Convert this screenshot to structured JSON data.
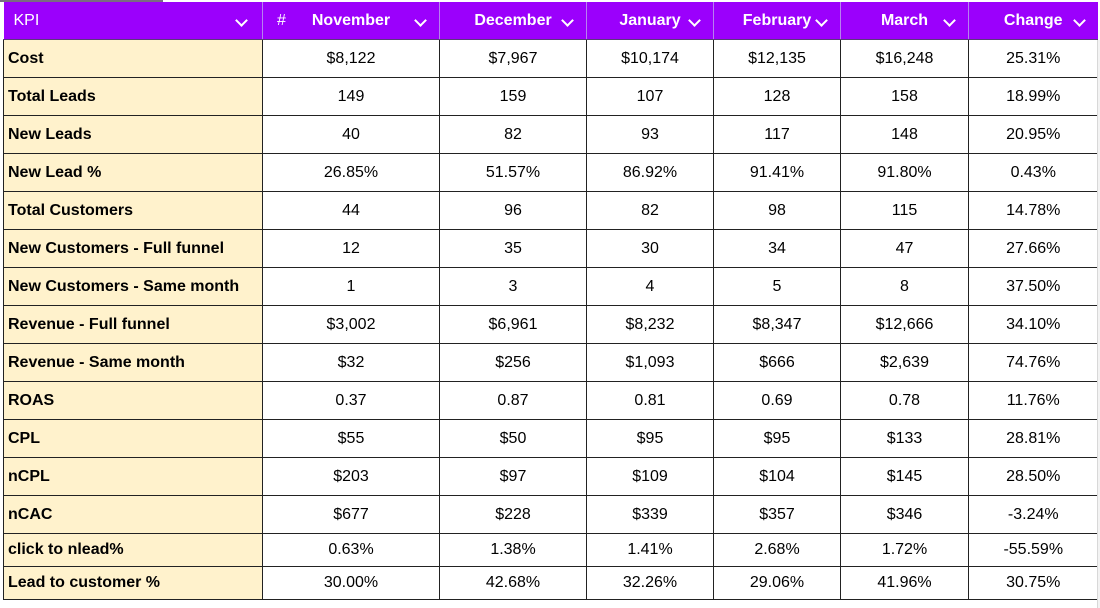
{
  "header": {
    "kpi": "KPI",
    "hash": "#",
    "months": [
      "November",
      "December",
      "January",
      "February",
      "March"
    ],
    "change": "Change"
  },
  "rows": [
    {
      "label": "Cost",
      "values": [
        "$8,122",
        "$7,967",
        "$10,174",
        "$12,135",
        "$16,248"
      ],
      "change": "25.31%"
    },
    {
      "label": "Total Leads",
      "values": [
        "149",
        "159",
        "107",
        "128",
        "158"
      ],
      "change": "18.99%"
    },
    {
      "label": "New Leads",
      "values": [
        "40",
        "82",
        "93",
        "117",
        "148"
      ],
      "change": "20.95%"
    },
    {
      "label": "New Lead %",
      "values": [
        "26.85%",
        "51.57%",
        "86.92%",
        "91.41%",
        "91.80%"
      ],
      "change": "0.43%"
    },
    {
      "label": "Total Customers",
      "values": [
        "44",
        "96",
        "82",
        "98",
        "115"
      ],
      "change": "14.78%"
    },
    {
      "label": "New Customers - Full funnel",
      "values": [
        "12",
        "35",
        "30",
        "34",
        "47"
      ],
      "change": "27.66%"
    },
    {
      "label": "New Customers - Same month",
      "values": [
        "1",
        "3",
        "4",
        "5",
        "8"
      ],
      "change": "37.50%"
    },
    {
      "label": "Revenue - Full funnel",
      "values": [
        "$3,002",
        "$6,961",
        "$8,232",
        "$8,347",
        "$12,666"
      ],
      "change": "34.10%"
    },
    {
      "label": "Revenue - Same month",
      "values": [
        "$32",
        "$256",
        "$1,093",
        "$666",
        "$2,639"
      ],
      "change": "74.76%"
    },
    {
      "label": "ROAS",
      "values": [
        "0.37",
        "0.87",
        "0.81",
        "0.69",
        "0.78"
      ],
      "change": "11.76%"
    },
    {
      "label": "CPL",
      "values": [
        "$55",
        "$50",
        "$95",
        "$95",
        "$133"
      ],
      "change": "28.81%"
    },
    {
      "label": "nCPL",
      "values": [
        "$203",
        "$97",
        "$109",
        "$104",
        "$145"
      ],
      "change": "28.50%"
    },
    {
      "label": "nCAC",
      "values": [
        "$677",
        "$228",
        "$339",
        "$357",
        "$346"
      ],
      "change": "-3.24%"
    },
    {
      "label": "click to nlead%",
      "values": [
        "0.63%",
        "1.38%",
        "1.41%",
        "2.68%",
        "1.72%"
      ],
      "change": "-55.59%"
    },
    {
      "label": "Lead to customer %",
      "values": [
        "30.00%",
        "42.68%",
        "32.26%",
        "29.06%",
        "41.96%"
      ],
      "change": "30.75%"
    }
  ],
  "icons": {
    "filter": "chevron-down-icon"
  },
  "colors": {
    "header_bg": "#9b00fc",
    "label_bg": "#fff2cc"
  }
}
